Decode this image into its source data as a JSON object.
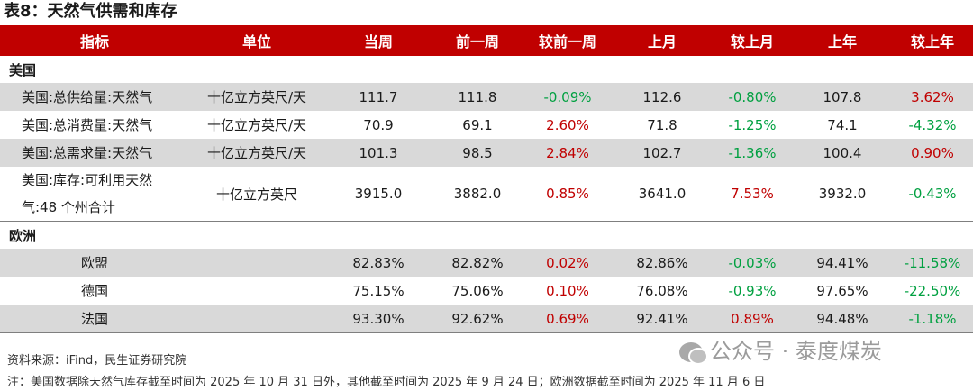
{
  "title": "表8：天然气供需和库存",
  "headers": [
    "指标",
    "单位",
    "当周",
    "前一周",
    "较前一周",
    "上月",
    "较上月",
    "上年",
    "较上年"
  ],
  "sections": [
    {
      "name": "美国",
      "rows": [
        {
          "label": [
            "美国:总供给量:天然气"
          ],
          "unit": "十亿立方英尺/天",
          "cur": "111.7",
          "prev_week": "111.8",
          "chg_week": "-0.09%",
          "last_month": "112.6",
          "chg_month": "-0.80%",
          "last_year": "107.8",
          "chg_year": "3.62%"
        },
        {
          "label": [
            "美国:总消费量:天然气"
          ],
          "unit": "十亿立方英尺/天",
          "cur": "70.9",
          "prev_week": "69.1",
          "chg_week": "2.60%",
          "last_month": "71.8",
          "chg_month": "-1.25%",
          "last_year": "74.1",
          "chg_year": "-4.32%"
        },
        {
          "label": [
            "美国:总需求量:天然气"
          ],
          "unit": "十亿立方英尺/天",
          "cur": "101.3",
          "prev_week": "98.5",
          "chg_week": "2.84%",
          "last_month": "102.7",
          "chg_month": "-1.36%",
          "last_year": "100.4",
          "chg_year": "0.90%"
        },
        {
          "label": [
            "美国:库存:可利用天然",
            "气:48 个州合计"
          ],
          "unit": "十亿立方英尺",
          "cur": "3915.0",
          "prev_week": "3882.0",
          "chg_week": "0.85%",
          "last_month": "3641.0",
          "chg_month": "7.53%",
          "last_year": "3932.0",
          "chg_year": "-0.43%"
        }
      ]
    },
    {
      "name": "欧洲",
      "rows": [
        {
          "label": [
            "欧盟"
          ],
          "unit": "",
          "cur": "82.83%",
          "prev_week": "82.82%",
          "chg_week": "0.02%",
          "last_month": "82.86%",
          "chg_month": "-0.03%",
          "last_year": "94.41%",
          "chg_year": "-11.58%"
        },
        {
          "label": [
            "德国"
          ],
          "unit": "",
          "cur": "75.15%",
          "prev_week": "75.06%",
          "chg_week": "0.10%",
          "last_month": "76.08%",
          "chg_month": "-0.93%",
          "last_year": "97.65%",
          "chg_year": "-22.50%"
        },
        {
          "label": [
            "法国"
          ],
          "unit": "",
          "cur": "93.30%",
          "prev_week": "92.62%",
          "chg_week": "0.69%",
          "last_month": "92.41%",
          "chg_month": "0.89%",
          "last_year": "94.48%",
          "chg_year": "-1.18%"
        }
      ]
    }
  ],
  "colors": {
    "header_bg": "#c00000",
    "positive": "#c00000",
    "negative": "#00a040",
    "shade": "#d9d9d9"
  },
  "source": "资料来源：iFind，民生证券研究院",
  "note": "注：美国数据除天然气库存截至时间为 2025 年 10 月 31 日外，其他截至时间为 2025 年 9 月 24 日；欧洲数据截至时间为 2025 年 11 月 6 日",
  "watermark": "公众号 · 泰度煤炭"
}
